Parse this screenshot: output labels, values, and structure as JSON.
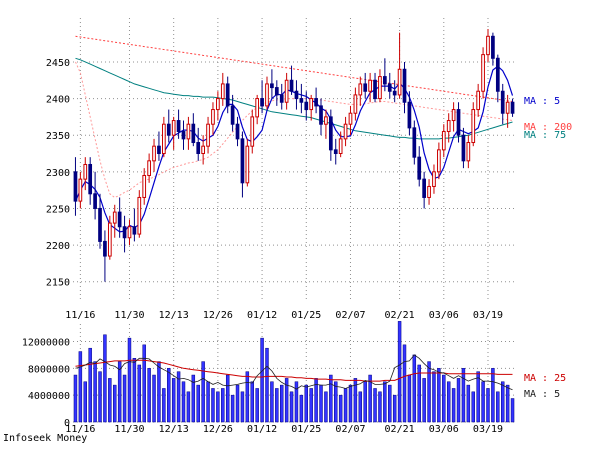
{
  "footer": {
    "text": "Infoseek Money"
  },
  "colors": {
    "background": "#ffffff",
    "up_candle": "#cc0000",
    "down_candle": "#000080",
    "doji_candle": "#008000",
    "ma5": "#0000cc",
    "ma75": "#008080",
    "ma200": "#ff4040",
    "volume_bar": "#3333ff",
    "volume_ma25": "#cc0000",
    "volume_ma5": "#202020",
    "grid": "#909090"
  },
  "chart_data": [
    {
      "type": "candlestick",
      "name": "price",
      "ylim": [
        2125,
        2510
      ],
      "yticks": [
        2150,
        2200,
        2250,
        2300,
        2350,
        2400,
        2450
      ],
      "yticks_labels": [
        "2150",
        "2200",
        "2250",
        "2300",
        "2350",
        "2400",
        "2450"
      ],
      "date_labels": [
        "11/16",
        "11/30",
        "12/13",
        "12/26",
        "01/12",
        "01/25",
        "02/07",
        "02/21",
        "03/06",
        "03/19"
      ],
      "date_label_index": [
        1,
        11,
        20,
        29,
        38,
        47,
        56,
        66,
        75,
        84
      ],
      "grid": true,
      "candles": [
        [
          2300,
          2320,
          2240,
          2260
        ],
        [
          2260,
          2300,
          2250,
          2290
        ],
        [
          2290,
          2320,
          2275,
          2310
        ],
        [
          2310,
          2320,
          2255,
          2270
        ],
        [
          2270,
          2300,
          2235,
          2250
        ],
        [
          2250,
          2270,
          2195,
          2205
        ],
        [
          2205,
          2220,
          2150,
          2185
        ],
        [
          2185,
          2240,
          2180,
          2230
        ],
        [
          2230,
          2255,
          2210,
          2245
        ],
        [
          2245,
          2265,
          2210,
          2225
        ],
        [
          2225,
          2240,
          2190,
          2210
        ],
        [
          2210,
          2235,
          2200,
          2225
        ],
        [
          2225,
          2250,
          2205,
          2215
        ],
        [
          2215,
          2275,
          2210,
          2265
        ],
        [
          2265,
          2305,
          2255,
          2295
        ],
        [
          2295,
          2325,
          2285,
          2315
        ],
        [
          2315,
          2345,
          2300,
          2335
        ],
        [
          2335,
          2355,
          2315,
          2325
        ],
        [
          2325,
          2375,
          2320,
          2365
        ],
        [
          2365,
          2385,
          2340,
          2350
        ],
        [
          2350,
          2375,
          2330,
          2370
        ],
        [
          2370,
          2385,
          2345,
          2355
        ],
        [
          2355,
          2370,
          2330,
          2345
        ],
        [
          2345,
          2375,
          2330,
          2365
        ],
        [
          2365,
          2380,
          2335,
          2340
        ],
        [
          2340,
          2360,
          2315,
          2325
        ],
        [
          2325,
          2350,
          2310,
          2335
        ],
        [
          2335,
          2375,
          2325,
          2365
        ],
        [
          2365,
          2395,
          2350,
          2385
        ],
        [
          2385,
          2410,
          2370,
          2400
        ],
        [
          2400,
          2435,
          2390,
          2420
        ],
        [
          2420,
          2430,
          2380,
          2390
        ],
        [
          2390,
          2405,
          2355,
          2365
        ],
        [
          2365,
          2375,
          2335,
          2345
        ],
        [
          2345,
          2355,
          2265,
          2285
        ],
        [
          2285,
          2345,
          2280,
          2335
        ],
        [
          2335,
          2385,
          2325,
          2375
        ],
        [
          2375,
          2405,
          2365,
          2400
        ],
        [
          2400,
          2425,
          2380,
          2390
        ],
        [
          2390,
          2430,
          2385,
          2420
        ],
        [
          2420,
          2440,
          2400,
          2415
        ],
        [
          2415,
          2425,
          2390,
          2405
        ],
        [
          2405,
          2420,
          2385,
          2395
        ],
        [
          2395,
          2435,
          2385,
          2425
        ],
        [
          2425,
          2445,
          2405,
          2410
        ],
        [
          2410,
          2425,
          2385,
          2400
        ],
        [
          2400,
          2420,
          2380,
          2395
        ],
        [
          2395,
          2410,
          2370,
          2385
        ],
        [
          2385,
          2405,
          2370,
          2400
        ],
        [
          2400,
          2415,
          2380,
          2390
        ],
        [
          2390,
          2400,
          2350,
          2365
        ],
        [
          2365,
          2385,
          2345,
          2375
        ],
        [
          2375,
          2385,
          2315,
          2330
        ],
        [
          2330,
          2345,
          2310,
          2325
        ],
        [
          2325,
          2355,
          2320,
          2345
        ],
        [
          2345,
          2375,
          2335,
          2365
        ],
        [
          2365,
          2390,
          2350,
          2380
        ],
        [
          2380,
          2415,
          2370,
          2405
        ],
        [
          2405,
          2430,
          2390,
          2420
        ],
        [
          2420,
          2435,
          2400,
          2410
        ],
        [
          2410,
          2435,
          2395,
          2425
        ],
        [
          2425,
          2435,
          2395,
          2400
        ],
        [
          2400,
          2440,
          2395,
          2430
        ],
        [
          2430,
          2455,
          2410,
          2420
        ],
        [
          2420,
          2435,
          2400,
          2410
        ],
        [
          2410,
          2425,
          2395,
          2405
        ],
        [
          2405,
          2490,
          2400,
          2440
        ],
        [
          2440,
          2450,
          2380,
          2395
        ],
        [
          2395,
          2410,
          2350,
          2360
        ],
        [
          2360,
          2370,
          2310,
          2320
        ],
        [
          2320,
          2335,
          2280,
          2290
        ],
        [
          2290,
          2300,
          2250,
          2265
        ],
        [
          2265,
          2290,
          2255,
          2280
        ],
        [
          2280,
          2310,
          2270,
          2300
        ],
        [
          2300,
          2340,
          2290,
          2330
        ],
        [
          2330,
          2365,
          2320,
          2355
        ],
        [
          2355,
          2380,
          2340,
          2370
        ],
        [
          2370,
          2395,
          2355,
          2385
        ],
        [
          2385,
          2395,
          2340,
          2350
        ],
        [
          2350,
          2360,
          2305,
          2315
        ],
        [
          2315,
          2350,
          2305,
          2340
        ],
        [
          2340,
          2395,
          2335,
          2385
        ],
        [
          2385,
          2420,
          2375,
          2410
        ],
        [
          2410,
          2470,
          2400,
          2460
        ],
        [
          2460,
          2495,
          2450,
          2485
        ],
        [
          2485,
          2490,
          2445,
          2455
        ],
        [
          2455,
          2460,
          2395,
          2410
        ],
        [
          2410,
          2420,
          2365,
          2380
        ],
        [
          2380,
          2405,
          2360,
          2395
        ],
        [
          2395,
          2400,
          2375,
          2380
        ]
      ],
      "ma_labels": [
        {
          "text": "MA : 5",
          "color_key": "ma5"
        },
        {
          "text": "MA : 200",
          "color_key": "ma200"
        },
        {
          "text": "MA : 75",
          "color_key": "ma75"
        }
      ],
      "ma75": [
        2455,
        2453,
        2450,
        2447,
        2444,
        2441,
        2438,
        2435,
        2432,
        2429,
        2426,
        2423,
        2420,
        2418,
        2416,
        2414,
        2412,
        2410,
        2408,
        2407,
        2406,
        2405,
        2404,
        2404,
        2403,
        2403,
        2402,
        2402,
        2402,
        2401,
        2400,
        2399,
        2398,
        2396,
        2394,
        2392,
        2390,
        2388,
        2386,
        2384,
        2382,
        2381,
        2380,
        2379,
        2378,
        2377,
        2376,
        2375,
        2374,
        2372,
        2370,
        2368,
        2366,
        2364,
        2362,
        2360,
        2358,
        2356,
        2355,
        2354,
        2353,
        2352,
        2351,
        2350,
        2349,
        2348,
        2347,
        2347,
        2346,
        2346,
        2345,
        2345,
        2345,
        2345,
        2345,
        2346,
        2346,
        2347,
        2348,
        2349,
        2350,
        2352,
        2354,
        2356,
        2358,
        2360,
        2362,
        2364,
        2366,
        2368
      ],
      "ma200": [
        2485,
        2484,
        2483,
        2482,
        2481,
        2480,
        2479,
        2478,
        2477,
        2476,
        2475,
        2474,
        2473,
        2472,
        2471,
        2470,
        2469,
        2468,
        2467,
        2466,
        2465,
        2464,
        2463,
        2462,
        2461,
        2460,
        2459,
        2458,
        2457,
        2456,
        2455,
        2454,
        2453,
        2452,
        2451,
        2450,
        2449,
        2448,
        2447,
        2446,
        2445,
        2444,
        2443,
        2442,
        2441,
        2440,
        2439,
        2438,
        2437,
        2436,
        2435,
        2434,
        2433,
        2432,
        2431,
        2430,
        2429,
        2428,
        2427,
        2426,
        2425,
        2424,
        2423,
        2422,
        2421,
        2420,
        2419,
        2418,
        2417,
        2416,
        2415,
        2414,
        2413,
        2412,
        2411,
        2410,
        2409,
        2408,
        2407,
        2406,
        2405,
        2404,
        2403,
        2402,
        2401,
        2400,
        2399,
        2398,
        2397,
        2396
      ],
      "ma_pink": [
        2450,
        2435,
        2405,
        2375,
        2345,
        2315,
        2290,
        2270,
        2265,
        2268,
        2272,
        2275,
        2280,
        2285,
        2288,
        2290,
        2293,
        2296,
        2300,
        2303,
        2306,
        2308,
        2310,
        2312,
        2313,
        2315,
        2317,
        2320,
        2325,
        2330,
        2338,
        2346,
        2354,
        2362,
        2370,
        2377,
        2383,
        2388,
        2392,
        2395,
        2397,
        2398,
        2399,
        2400,
        2400,
        2400,
        2400,
        2400,
        2400,
        2399,
        2398,
        2397,
        2396,
        2395,
        2394,
        2393,
        2392,
        2392,
        2392,
        2393,
        2394,
        2395,
        2396,
        2396,
        2395,
        2394,
        2393,
        2392,
        2391,
        2390,
        2389,
        2388,
        2387,
        2386,
        2385,
        2384,
        2383,
        2382,
        2381,
        2380,
        2379,
        2378,
        2377,
        2376,
        2375,
        2374,
        2373,
        2372,
        2371,
        2370
      ]
    },
    {
      "type": "bar",
      "name": "volume",
      "ylim": [
        0,
        15500000
      ],
      "yticks": [
        0,
        4000000,
        8000000,
        12000000
      ],
      "yticks_labels": [
        "0",
        "4000000",
        "8000000",
        "12000000"
      ],
      "date_labels": [
        "11/16",
        "11/30",
        "12/13",
        "12/26",
        "01/12",
        "01/25",
        "02/07",
        "02/21",
        "03/06",
        "03/19"
      ],
      "grid": true,
      "values": [
        7000000,
        10500000,
        6000000,
        11000000,
        9000000,
        7500000,
        13000000,
        6500000,
        5500000,
        9000000,
        7000000,
        12500000,
        9500000,
        8500000,
        11500000,
        8000000,
        7000000,
        9000000,
        5000000,
        8000000,
        6500000,
        7500000,
        6000000,
        4500000,
        7000000,
        5500000,
        9000000,
        6000000,
        5000000,
        4500000,
        5000000,
        7000000,
        4000000,
        5500000,
        4500000,
        7500000,
        6000000,
        5000000,
        12500000,
        11000000,
        6000000,
        5000000,
        5500000,
        6500000,
        4500000,
        6000000,
        4000000,
        5500000,
        5000000,
        6500000,
        5500000,
        4500000,
        7000000,
        6000000,
        4000000,
        5000000,
        5500000,
        6500000,
        4500000,
        6000000,
        7000000,
        5000000,
        4500000,
        6000000,
        5500000,
        4000000,
        15000000,
        11500000,
        7000000,
        10000000,
        8500000,
        6500000,
        9000000,
        7500000,
        8000000,
        7000000,
        6000000,
        5000000,
        6500000,
        8000000,
        5500000,
        4500000,
        7500000,
        6000000,
        5000000,
        8000000,
        4500000,
        6000000,
        5500000,
        3500000
      ],
      "ma_labels": [
        {
          "text": "MA : 25",
          "color_key": "volume_ma25"
        },
        {
          "text": "MA : 5",
          "color_key": "volume_ma5"
        }
      ],
      "ma25": [
        8300000,
        8400000,
        8500000,
        8600000,
        8700000,
        8800000,
        8900000,
        9000000,
        9100000,
        9100000,
        9100000,
        9200000,
        9200000,
        9200000,
        9200000,
        9100000,
        9000000,
        8900000,
        8800000,
        8600000,
        8400000,
        8200000,
        8000000,
        7900000,
        7800000,
        7700000,
        7600000,
        7500000,
        7400000,
        7300000,
        7200000,
        7100000,
        7000000,
        6900000,
        6800000,
        6800000,
        6700000,
        6700000,
        6700000,
        6800000,
        6800000,
        6800000,
        6800000,
        6700000,
        6700000,
        6600000,
        6600000,
        6500000,
        6500000,
        6400000,
        6400000,
        6400000,
        6300000,
        6300000,
        6300000,
        6200000,
        6200000,
        6200000,
        6200000,
        6100000,
        6100000,
        6100000,
        6100000,
        6200000,
        6200000,
        6200000,
        6500000,
        6800000,
        7000000,
        7200000,
        7300000,
        7300000,
        7300000,
        7300000,
        7300000,
        7300000,
        7200000,
        7200000,
        7200000,
        7200000,
        7200000,
        7200000,
        7200000,
        7200000,
        7200000,
        7200000,
        7100000,
        7100000,
        7100000,
        7100000
      ],
      "ma5": [
        8000000,
        8200000,
        8500000,
        8900000,
        8700000,
        9400000,
        9000000,
        8500000,
        8300000,
        7800000,
        8700000,
        9000000,
        8900000,
        9500000,
        9500000,
        9400000,
        8800000,
        8200000,
        7800000,
        7400000,
        6900000,
        6400000,
        6500000,
        6300000,
        5900000,
        6100000,
        6500000,
        6000000,
        5600000,
        5900000,
        5500000,
        5400000,
        5500000,
        5600000,
        5800000,
        5900000,
        5800000,
        6900000,
        7600000,
        8300000,
        7600000,
        6500000,
        5900000,
        5500000,
        5300000,
        4900000,
        5400000,
        5200000,
        5400000,
        5600000,
        5500000,
        5500000,
        5700000,
        5300000,
        5200000,
        5000000,
        5300000,
        5500000,
        5700000,
        6200000,
        6000000,
        5600000,
        5600000,
        5700000,
        6100000,
        8100000,
        8500000,
        9000000,
        9100000,
        10000000,
        9500000,
        8700000,
        8000000,
        7800000,
        7400000,
        7300000,
        6900000,
        6500000,
        6900000,
        6500000,
        6100000,
        6400000,
        6600000,
        6100000,
        6100000,
        6000000,
        5800000,
        5500000,
        5100000,
        4800000
      ]
    }
  ]
}
